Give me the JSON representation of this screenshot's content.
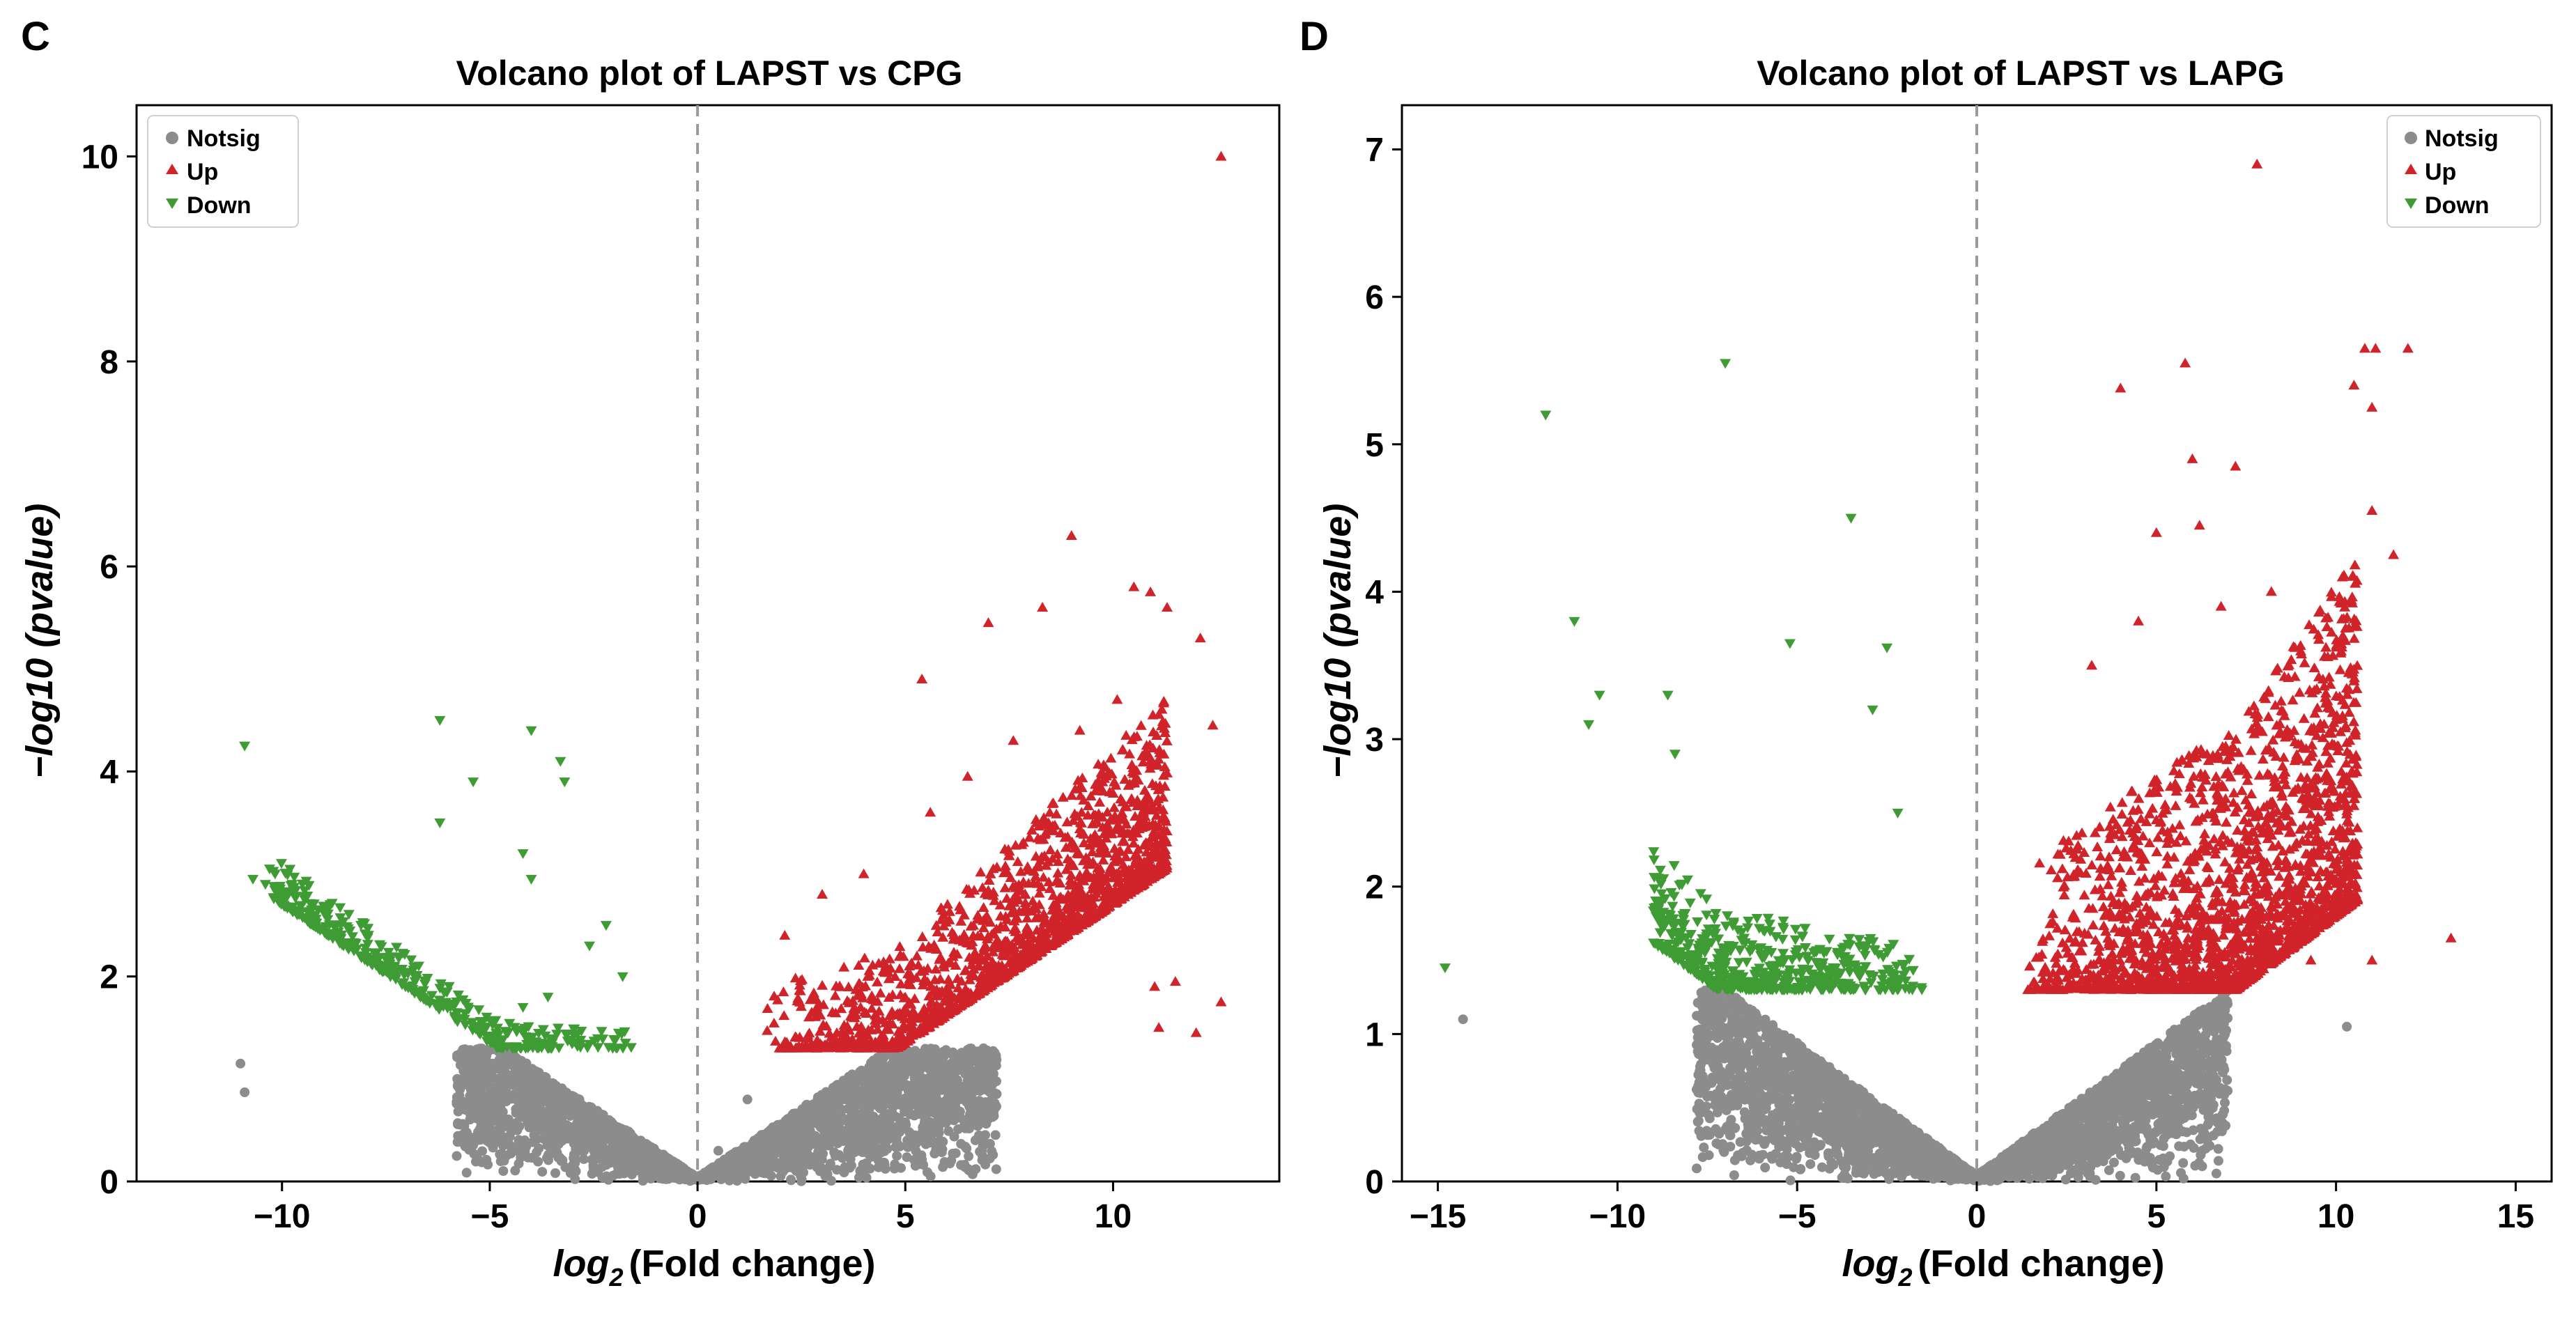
{
  "chart_data": [
    {
      "panel_letter": "C",
      "type": "scatter",
      "title": "Volcano plot of LAPST vs CPG",
      "xlabel_sym": "log",
      "xlabel_sub": "2",
      "xlabel_rest": "(Fold change)",
      "ylabel": "−log10 (pvalue)",
      "xlim": [
        -13.5,
        14
      ],
      "ylim": [
        0,
        10.5
      ],
      "xticks": [
        -10,
        -5,
        0,
        5,
        10
      ],
      "xtick_labels": [
        "−10",
        "−5",
        "0",
        "5",
        "10"
      ],
      "yticks": [
        0,
        2,
        4,
        6,
        8,
        10
      ],
      "ytick_labels": [
        "0",
        "2",
        "4",
        "6",
        "8",
        "10"
      ],
      "vline_x": 0,
      "legend_position": "top-left",
      "legend": [
        {
          "name": "Notsig",
          "marker": "circle",
          "color": "#8c8c8c"
        },
        {
          "name": "Up",
          "marker": "triangle-up",
          "color": "#d1232a"
        },
        {
          "name": "Down",
          "marker": "triangle-down",
          "color": "#3f9c35"
        }
      ],
      "series": [
        {
          "name": "Notsig",
          "color": "#8c8c8c",
          "outliers": [
            [
              -11,
              1.15
            ],
            [
              -10.9,
              0.87
            ],
            [
              -3.5,
              0.35
            ],
            [
              -0.8,
              0.05
            ],
            [
              -0.3,
              0.02
            ],
            [
              0.5,
              0.3
            ],
            [
              1.2,
              0.8
            ]
          ],
          "cloud": {
            "xMin": -5.8,
            "xMax": 7.2,
            "yCap": 1.3,
            "k": 0.27,
            "n": 3000
          }
        },
        {
          "name": "Up",
          "color": "#d1232a",
          "points": [
            [
              12.6,
              10.0
            ],
            [
              9.0,
              6.3
            ],
            [
              10.5,
              5.8
            ],
            [
              10.9,
              5.75
            ],
            [
              11.3,
              5.6
            ],
            [
              12.1,
              5.3
            ],
            [
              7.0,
              5.45
            ],
            [
              8.3,
              5.6
            ],
            [
              5.4,
              4.9
            ],
            [
              12.4,
              4.45
            ],
            [
              11.0,
              1.9
            ],
            [
              11.5,
              1.95
            ],
            [
              11.1,
              1.5
            ],
            [
              12.0,
              1.45
            ],
            [
              12.6,
              1.75
            ],
            [
              2.1,
              2.4
            ],
            [
              3.0,
              2.8
            ],
            [
              4.0,
              3.0
            ],
            [
              5.6,
              3.6
            ],
            [
              6.5,
              3.95
            ],
            [
              7.6,
              4.3
            ],
            [
              9.2,
              4.4
            ],
            [
              10.1,
              4.7
            ],
            [
              10.7,
              4.15
            ]
          ],
          "cloud": {
            "xMin": 1.6,
            "xMax": 11.3,
            "yBase": 1.3,
            "k": 0.27,
            "n": 1600,
            "spread": 1.3
          }
        },
        {
          "name": "Down",
          "color": "#3f9c35",
          "points": [
            [
              -10.9,
              4.25
            ],
            [
              -6.2,
              4.5
            ],
            [
              -4.0,
              4.4
            ],
            [
              -3.3,
              4.1
            ],
            [
              -3.2,
              3.9
            ],
            [
              -5.4,
              3.9
            ],
            [
              -6.2,
              3.5
            ],
            [
              -4.2,
              3.2
            ],
            [
              -4.0,
              2.95
            ],
            [
              -10.7,
              2.95
            ],
            [
              -10.4,
              2.9
            ],
            [
              -2.2,
              2.5
            ],
            [
              -2.6,
              2.3
            ],
            [
              -3.6,
              1.8
            ],
            [
              -4.2,
              1.7
            ],
            [
              -1.8,
              2.0
            ]
          ],
          "cloud": {
            "xMin": -10.3,
            "xMax": -1.5,
            "yBase": 1.3,
            "k": 0.27,
            "n": 420,
            "spread": 0.35
          }
        }
      ]
    },
    {
      "panel_letter": "D",
      "type": "scatter",
      "title": "Volcano plot of LAPST vs LAPG",
      "xlabel_sym": "log",
      "xlabel_sub": "2",
      "xlabel_rest": "(Fold change)",
      "ylabel": "−log10 (pvalue)",
      "xlim": [
        -16,
        16
      ],
      "ylim": [
        0,
        7.3
      ],
      "xticks": [
        -15,
        -10,
        -5,
        0,
        5,
        10,
        15
      ],
      "xtick_labels": [
        "−15",
        "−10",
        "−5",
        "0",
        "5",
        "10",
        "15"
      ],
      "yticks": [
        0,
        1,
        2,
        3,
        4,
        5,
        6,
        7
      ],
      "ytick_labels": [
        "0",
        "1",
        "2",
        "3",
        "4",
        "5",
        "6",
        "7"
      ],
      "vline_x": 0,
      "legend_position": "top-right",
      "legend": [
        {
          "name": "Notsig",
          "marker": "circle",
          "color": "#8c8c8c"
        },
        {
          "name": "Up",
          "marker": "triangle-up",
          "color": "#d1232a"
        },
        {
          "name": "Down",
          "marker": "triangle-down",
          "color": "#3f9c35"
        }
      ],
      "series": [
        {
          "name": "Notsig",
          "color": "#8c8c8c",
          "outliers": [
            [
              -14.3,
              1.1
            ],
            [
              -6.0,
              0.55
            ],
            [
              10.3,
              1.05
            ],
            [
              -0.5,
              0.05
            ]
          ],
          "cloud": {
            "xMin": -7.8,
            "xMax": 7.0,
            "yCap": 1.3,
            "k": 0.18,
            "n": 3400
          }
        },
        {
          "name": "Up",
          "color": "#d1232a",
          "points": [
            [
              7.8,
              6.9
            ],
            [
              5.8,
              5.55
            ],
            [
              4.0,
              5.38
            ],
            [
              6.0,
              4.9
            ],
            [
              7.2,
              4.85
            ],
            [
              10.5,
              5.4
            ],
            [
              10.8,
              5.65
            ],
            [
              11.1,
              5.65
            ],
            [
              12.0,
              5.65
            ],
            [
              11.0,
              5.25
            ],
            [
              11.0,
              4.55
            ],
            [
              11.6,
              4.25
            ],
            [
              5.0,
              4.4
            ],
            [
              6.2,
              4.45
            ],
            [
              13.2,
              1.65
            ],
            [
              11.0,
              1.5
            ],
            [
              9.3,
              1.5
            ],
            [
              3.2,
              3.5
            ],
            [
              4.5,
              3.8
            ],
            [
              6.8,
              3.9
            ],
            [
              8.2,
              4.0
            ]
          ],
          "cloud": {
            "xMin": 1.4,
            "xMax": 10.6,
            "yBase": 1.3,
            "k": 0.18,
            "n": 2000,
            "spread": 1.9
          }
        },
        {
          "name": "Down",
          "color": "#3f9c35",
          "points": [
            [
              -7.0,
              5.55
            ],
            [
              -12.0,
              5.2
            ],
            [
              -3.5,
              4.5
            ],
            [
              -11.2,
              3.8
            ],
            [
              -5.2,
              3.65
            ],
            [
              -2.5,
              3.62
            ],
            [
              -10.5,
              3.3
            ],
            [
              -8.6,
              3.3
            ],
            [
              -2.9,
              3.2
            ],
            [
              -10.8,
              3.1
            ],
            [
              -14.8,
              1.45
            ],
            [
              -8.4,
              2.9
            ],
            [
              -2.2,
              2.5
            ]
          ],
          "cloud": {
            "xMin": -9.0,
            "xMax": -1.4,
            "yBase": 1.3,
            "k": 0.18,
            "n": 520,
            "spread": 0.6
          }
        }
      ]
    }
  ]
}
